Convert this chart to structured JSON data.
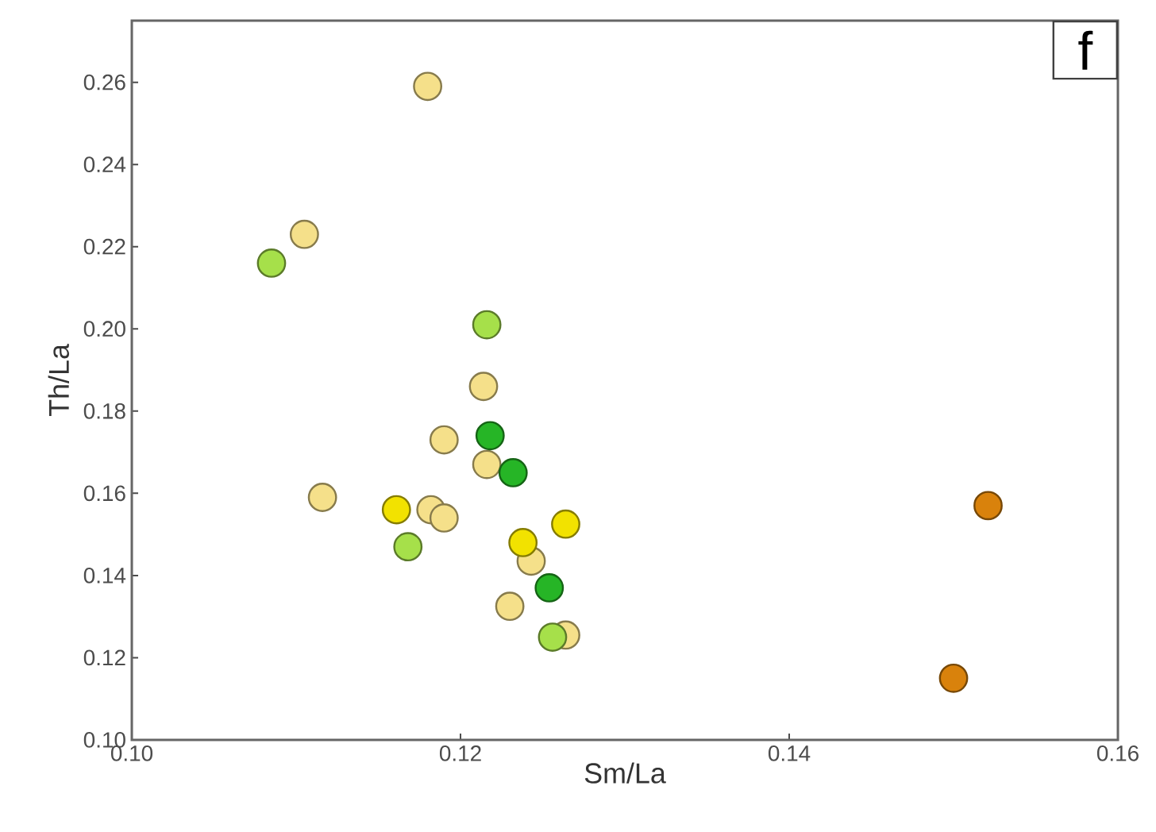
{
  "chart_data": {
    "type": "scatter",
    "xlabel": "Sm/La",
    "ylabel": "Th/La",
    "xlim": [
      0.1,
      0.16
    ],
    "ylim": [
      0.1,
      0.275
    ],
    "xticks": [
      {
        "value": 0.1,
        "label": "0.10"
      },
      {
        "value": 0.12,
        "label": "0.12"
      },
      {
        "value": 0.14,
        "label": "0.14"
      },
      {
        "value": 0.16,
        "label": "0.16"
      }
    ],
    "yticks": [
      {
        "value": 0.1,
        "label": "0.10"
      },
      {
        "value": 0.12,
        "label": "0.12"
      },
      {
        "value": 0.14,
        "label": "0.14"
      },
      {
        "value": 0.16,
        "label": "0.16"
      },
      {
        "value": 0.18,
        "label": "0.18"
      },
      {
        "value": 0.2,
        "label": "0.20"
      },
      {
        "value": 0.22,
        "label": "0.22"
      },
      {
        "value": 0.24,
        "label": "0.24"
      },
      {
        "value": 0.26,
        "label": "0.26"
      }
    ],
    "marker": "circle",
    "annotations": [
      "f"
    ],
    "series": [
      {
        "color": "#f5e08a",
        "x": [
          0.118,
          0.1105,
          0.1214,
          0.119,
          0.1216,
          0.1116,
          0.1182,
          0.119,
          0.1243,
          0.123,
          0.1264
        ],
        "values": [
          0.259,
          0.223,
          0.186,
          0.173,
          0.167,
          0.159,
          0.156,
          0.154,
          0.1435,
          0.1325,
          0.1255
        ]
      },
      {
        "color": "#f2e200",
        "x": [
          0.1161,
          0.1264,
          0.1238
        ],
        "values": [
          0.156,
          0.1525,
          0.148
        ]
      },
      {
        "color": "#a6e04a",
        "x": [
          0.1085,
          0.1216,
          0.1168,
          0.1256
        ],
        "values": [
          0.216,
          0.201,
          0.147,
          0.125
        ]
      },
      {
        "color": "#26b526",
        "x": [
          0.1218,
          0.1232,
          0.1254
        ],
        "values": [
          0.174,
          0.165,
          0.137
        ]
      },
      {
        "color": "#d9820c",
        "x": [
          0.1521,
          0.15
        ],
        "values": [
          0.157,
          0.115
        ]
      }
    ]
  }
}
